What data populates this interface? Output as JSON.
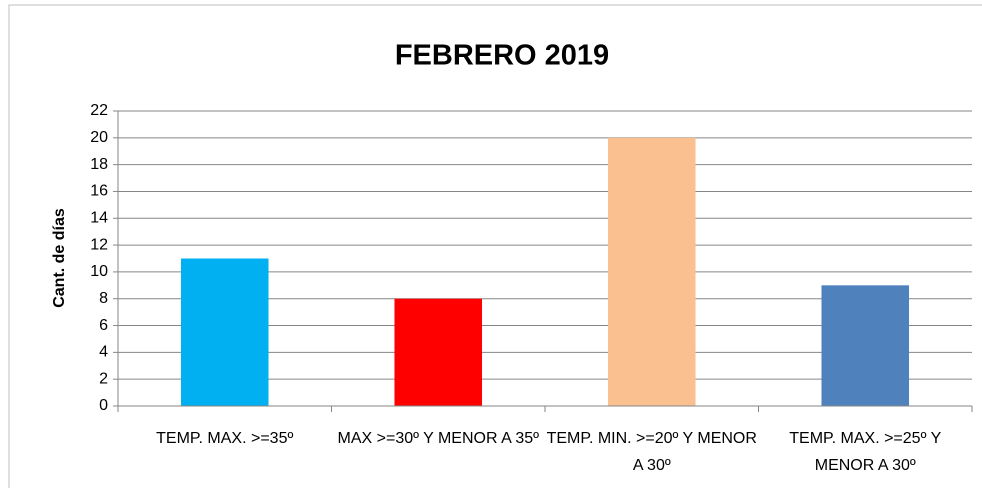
{
  "chart_data": {
    "type": "bar",
    "title": "FEBRERO 2019",
    "y_label": "Cant. de días",
    "categories": [
      "TEMP. MAX. >=35º",
      "MAX >=30º Y MENOR A 35º",
      "TEMP. MIN. >=20º Y MENOR A 30º",
      "TEMP. MAX. >=25º Y MENOR A 30º"
    ],
    "values": [
      11,
      8,
      20,
      9
    ],
    "colors": [
      "#00b0f0",
      "#ff0000",
      "#fac090",
      "#4f81bd"
    ],
    "ylim": [
      0,
      22
    ],
    "yticks": [
      0,
      2,
      4,
      6,
      8,
      10,
      12,
      14,
      16,
      18,
      20,
      22
    ],
    "grid": true
  }
}
